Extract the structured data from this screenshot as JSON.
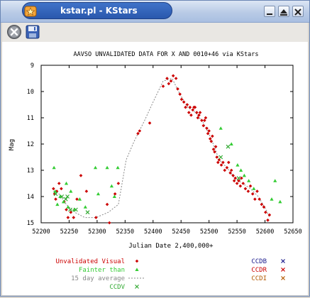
{
  "window": {
    "title": "kstar.pl - KStars"
  },
  "toolbar": {
    "close_icon": "close-icon",
    "save_icon": "floppy-save-icon"
  },
  "chart_data": {
    "type": "scatter",
    "title": "AAVSO UNVALIDATED DATA FOR X AND 0010+46 via KStars",
    "xlabel": "Julian Date 2,400,000+",
    "ylabel": "Mag",
    "xlim": [
      52200,
      52650
    ],
    "ylim": [
      15,
      9
    ],
    "y_inverted": true,
    "x_ticks": [
      "52200",
      "52250",
      "52300",
      "52350",
      "52400",
      "52450",
      "52500",
      "52550",
      "52600",
      "52650"
    ],
    "y_ticks": [
      "9",
      "10",
      "11",
      "12",
      "13",
      "14",
      "15"
    ],
    "legend": {
      "placement": "bottom",
      "entries": [
        {
          "label": "Unvalidated Visual",
          "color": "#cc0000",
          "marker": "diamond"
        },
        {
          "label": "Fainter than",
          "color": "#33cc33",
          "marker": "triangle"
        },
        {
          "label": "15 day average",
          "color": "#888888",
          "marker": "dashed-line"
        },
        {
          "label": "CCDV",
          "color": "#33aa33",
          "marker": "x"
        },
        {
          "label": "CCDB",
          "color": "#1a1a8c",
          "marker": "x"
        },
        {
          "label": "CCDR",
          "color": "#cc0000",
          "marker": "x"
        },
        {
          "label": "CCDI",
          "color": "#b35900",
          "marker": "x"
        }
      ]
    },
    "series": [
      {
        "name": "Unvalidated Visual",
        "color": "#cc0000",
        "points": [
          [
            52222,
            13.7
          ],
          [
            52224,
            13.9
          ],
          [
            52226,
            14.1
          ],
          [
            52228,
            13.8
          ],
          [
            52232,
            13.5
          ],
          [
            52236,
            13.7
          ],
          [
            52241,
            14.2
          ],
          [
            52245,
            14.5
          ],
          [
            52248,
            14.8
          ],
          [
            52253,
            14.6
          ],
          [
            52258,
            14.8
          ],
          [
            52264,
            14.1
          ],
          [
            52271,
            13.2
          ],
          [
            52281,
            13.8
          ],
          [
            52298,
            14.8
          ],
          [
            52318,
            14.3
          ],
          [
            52322,
            15.0
          ],
          [
            52332,
            13.9
          ],
          [
            52338,
            13.5
          ],
          [
            52373,
            11.6
          ],
          [
            52376,
            11.5
          ],
          [
            52394,
            11.2
          ],
          [
            52418,
            9.8
          ],
          [
            52425,
            9.5
          ],
          [
            52428,
            9.7
          ],
          [
            52432,
            9.6
          ],
          [
            52436,
            9.4
          ],
          [
            52441,
            9.5
          ],
          [
            52444,
            9.9
          ],
          [
            52448,
            10.1
          ],
          [
            52451,
            10.3
          ],
          [
            52455,
            10.4
          ],
          [
            52458,
            10.6
          ],
          [
            52461,
            10.5
          ],
          [
            52464,
            10.8
          ],
          [
            52466,
            10.6
          ],
          [
            52468,
            10.9
          ],
          [
            52471,
            10.7
          ],
          [
            52473,
            10.6
          ],
          [
            52475,
            10.6
          ],
          [
            52478,
            10.8
          ],
          [
            52480,
            11.0
          ],
          [
            52482,
            10.9
          ],
          [
            52484,
            10.8
          ],
          [
            52487,
            11.1
          ],
          [
            52490,
            11.3
          ],
          [
            52492,
            11.1
          ],
          [
            52494,
            11.0
          ],
          [
            52496,
            11.4
          ],
          [
            52498,
            11.6
          ],
          [
            52500,
            11.5
          ],
          [
            52502,
            11.8
          ],
          [
            52504,
            11.9
          ],
          [
            52506,
            11.7
          ],
          [
            52508,
            12.2
          ],
          [
            52510,
            12.3
          ],
          [
            52512,
            12.1
          ],
          [
            52514,
            12.5
          ],
          [
            52516,
            12.7
          ],
          [
            52518,
            12.6
          ],
          [
            52522,
            12.8
          ],
          [
            52525,
            12.7
          ],
          [
            52528,
            13.0
          ],
          [
            52532,
            12.9
          ],
          [
            52535,
            12.7
          ],
          [
            52538,
            13.1
          ],
          [
            52540,
            13.0
          ],
          [
            52543,
            13.2
          ],
          [
            52545,
            13.4
          ],
          [
            52547,
            13.3
          ],
          [
            52550,
            13.5
          ],
          [
            52553,
            13.4
          ],
          [
            52556,
            13.6
          ],
          [
            52558,
            13.3
          ],
          [
            52561,
            13.5
          ],
          [
            52565,
            13.7
          ],
          [
            52570,
            13.8
          ],
          [
            52574,
            13.6
          ],
          [
            52578,
            13.9
          ],
          [
            52582,
            14.1
          ],
          [
            52586,
            13.8
          ],
          [
            52590,
            14.1
          ],
          [
            52594,
            14.3
          ],
          [
            52598,
            14.4
          ],
          [
            52601,
            14.6
          ],
          [
            52605,
            14.9
          ],
          [
            52608,
            14.7
          ]
        ]
      },
      {
        "name": "Fainter than",
        "color": "#33cc33",
        "points": [
          [
            52223,
            12.9
          ],
          [
            52225,
            13.8
          ],
          [
            52229,
            14.3
          ],
          [
            52234,
            14.0
          ],
          [
            52240,
            14.2
          ],
          [
            52245,
            13.5
          ],
          [
            52248,
            14.4
          ],
          [
            52253,
            13.8
          ],
          [
            52259,
            14.5
          ],
          [
            52269,
            14.1
          ],
          [
            52279,
            14.4
          ],
          [
            52297,
            12.9
          ],
          [
            52302,
            13.9
          ],
          [
            52318,
            12.9
          ],
          [
            52326,
            13.6
          ],
          [
            52331,
            14.0
          ],
          [
            52337,
            12.9
          ],
          [
            52521,
            11.4
          ],
          [
            52540,
            12.0
          ],
          [
            52551,
            12.8
          ],
          [
            52557,
            13.0
          ],
          [
            52563,
            13.2
          ],
          [
            52571,
            13.4
          ],
          [
            52580,
            13.7
          ],
          [
            52612,
            14.1
          ],
          [
            52618,
            13.4
          ],
          [
            52627,
            14.2
          ]
        ]
      },
      {
        "name": "15 day average",
        "color": "#888888",
        "points": [
          [
            52222,
            13.8
          ],
          [
            52232,
            13.9
          ],
          [
            52245,
            14.3
          ],
          [
            52260,
            14.6
          ],
          [
            52278,
            14.8
          ],
          [
            52298,
            14.8
          ],
          [
            52320,
            14.6
          ],
          [
            52338,
            14.3
          ],
          [
            52352,
            12.6
          ],
          [
            52366,
            11.9
          ],
          [
            52385,
            11.1
          ],
          [
            52400,
            10.4
          ],
          [
            52418,
            9.6
          ],
          [
            52434,
            9.5
          ],
          [
            52448,
            10.1
          ],
          [
            52462,
            10.6
          ],
          [
            52476,
            10.8
          ],
          [
            52490,
            11.2
          ],
          [
            52504,
            11.8
          ],
          [
            52518,
            12.6
          ],
          [
            52532,
            12.9
          ],
          [
            52546,
            13.3
          ],
          [
            52560,
            13.5
          ],
          [
            52574,
            13.7
          ],
          [
            52588,
            14.0
          ],
          [
            52602,
            14.5
          ],
          [
            52608,
            14.8
          ]
        ]
      },
      {
        "name": "CCDV",
        "color": "#33aa33",
        "points": [
          [
            52226,
            13.9
          ],
          [
            52237,
            14.0
          ],
          [
            52244,
            14.1
          ],
          [
            52247,
            14.0
          ],
          [
            52252,
            14.5
          ],
          [
            52262,
            14.5
          ],
          [
            52283,
            14.6
          ],
          [
            52521,
            12.5
          ],
          [
            52534,
            12.1
          ],
          [
            52553,
            13.3
          ]
        ]
      }
    ]
  }
}
